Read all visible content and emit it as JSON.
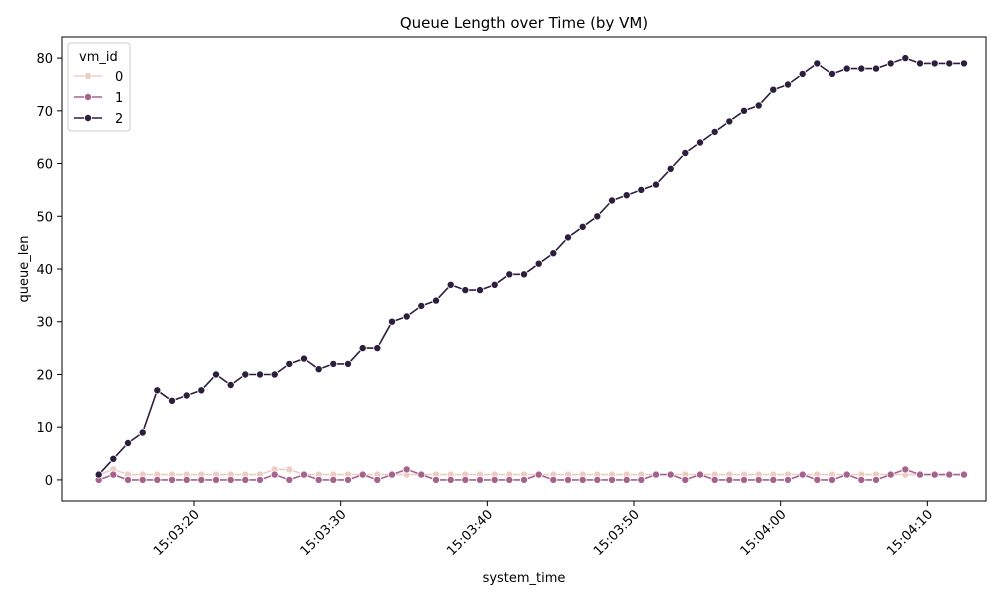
{
  "chart_data": {
    "type": "line",
    "title": "Queue Length over Time (by VM)",
    "xlabel": "system_time",
    "ylabel": "queue_len",
    "x_start": "15:03:13.5",
    "x_range": [
      "15:03:11",
      "15:04:14"
    ],
    "ylim": [
      -4,
      84
    ],
    "y_ticks": [
      0,
      10,
      20,
      30,
      40,
      50,
      60,
      70,
      80
    ],
    "x_ticks": [
      {
        "value": "15:03:20",
        "label": "15:03:20"
      },
      {
        "value": "15:03:30",
        "label": "15:03:30"
      },
      {
        "value": "15:03:40",
        "label": "15:03:40"
      },
      {
        "value": "15:03:50",
        "label": "15:03:50"
      },
      {
        "value": "15:04:00",
        "label": "15:04:00"
      },
      {
        "value": "15:04:10",
        "label": "15:04:10"
      }
    ],
    "legend": {
      "title": "vm_id",
      "placement": "upper-left"
    },
    "grid": false,
    "x_step_seconds": 1,
    "series": [
      {
        "name": "0",
        "color": "#ebcdc3",
        "values": [
          1,
          2,
          1,
          1,
          1,
          1,
          1,
          1,
          1,
          1,
          1,
          1,
          2,
          2,
          1,
          1,
          1,
          1,
          1,
          1,
          1,
          1,
          1,
          1,
          1,
          1,
          1,
          1,
          1,
          1,
          1,
          1,
          1,
          1,
          1,
          1,
          1,
          1,
          1,
          1,
          1,
          1,
          1,
          1,
          1,
          1,
          1,
          1,
          1,
          1,
          1,
          1,
          1,
          1,
          1,
          1,
          1,
          1,
          1,
          1
        ]
      },
      {
        "name": "1",
        "color": "#a6628d",
        "values": [
          0,
          1,
          0,
          0,
          0,
          0,
          0,
          0,
          0,
          0,
          0,
          0,
          1,
          0,
          1,
          0,
          0,
          0,
          1,
          0,
          1,
          2,
          1,
          0,
          0,
          0,
          0,
          0,
          0,
          0,
          1,
          0,
          0,
          0,
          0,
          0,
          0,
          0,
          1,
          1,
          0,
          1,
          0,
          0,
          0,
          0,
          0,
          0,
          1,
          0,
          0,
          1,
          0,
          0,
          1,
          2,
          1,
          1,
          1,
          1
        ]
      },
      {
        "name": "2",
        "color": "#2d1e3e",
        "values": [
          1,
          4,
          7,
          9,
          17,
          15,
          16,
          17,
          20,
          18,
          20,
          20,
          20,
          22,
          23,
          21,
          22,
          22,
          25,
          25,
          30,
          31,
          33,
          34,
          37,
          36,
          36,
          37,
          39,
          39,
          41,
          43,
          46,
          48,
          50,
          53,
          54,
          55,
          56,
          59,
          62,
          64,
          66,
          68,
          70,
          71,
          74,
          75,
          77,
          79,
          77,
          78,
          78,
          78,
          79,
          80,
          79,
          79,
          79,
          79
        ]
      }
    ]
  }
}
